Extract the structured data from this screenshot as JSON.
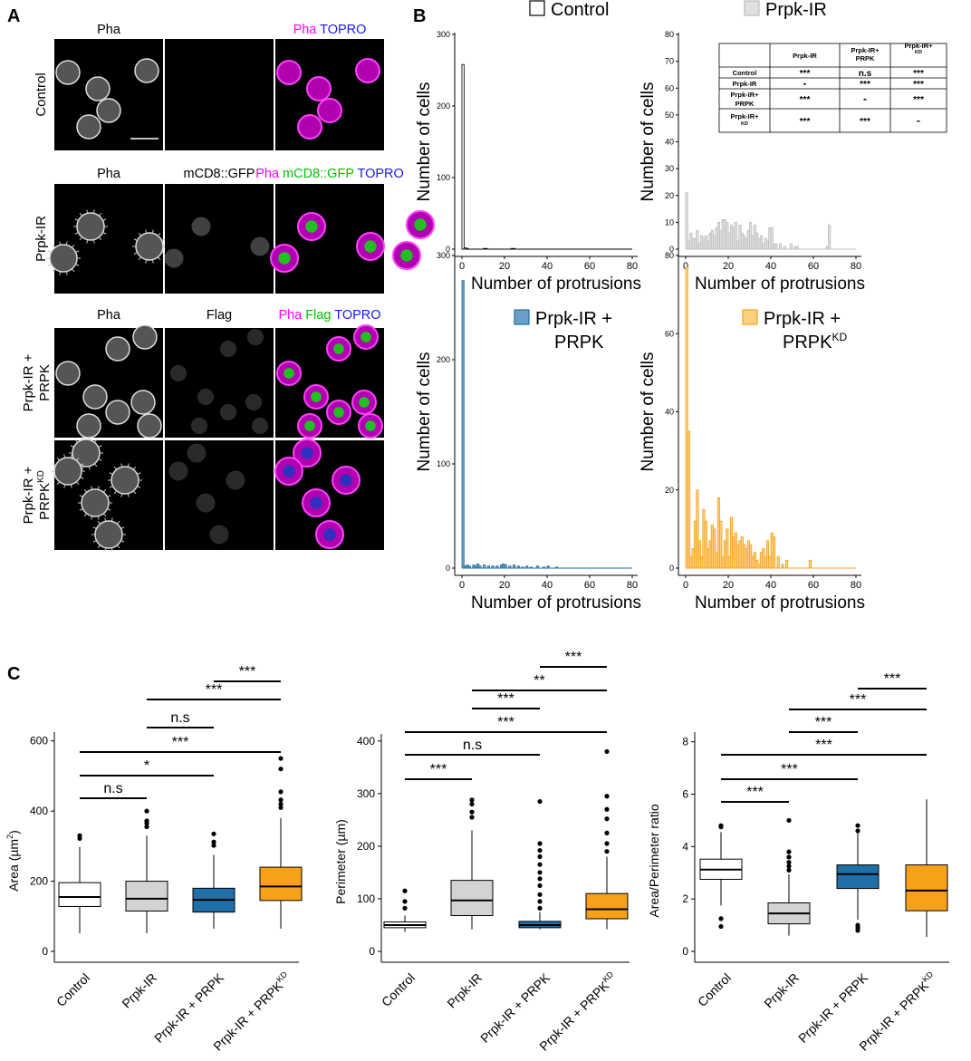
{
  "panels": {
    "a": "A",
    "b": "B",
    "c": "C"
  },
  "colors": {
    "control": "#ffffff",
    "prpk_ir": "#d3d3d3",
    "prpk_ir_prpk": "#1f6fa8",
    "prpk_ir_prpk_kd": "#f7a11a",
    "magenta": "#ff00ff",
    "green": "#00e000",
    "blue": "#1a1aff"
  },
  "panel_a": {
    "rows": [
      {
        "label": "Control",
        "headers": [
          [
            {
              "t": "Pha",
              "c": "#000"
            }
          ],
          [],
          [
            {
              "t": "Pha",
              "c": "#ff00ff"
            },
            {
              "t": " TOPRO",
              "c": "#1a1aff"
            }
          ]
        ]
      },
      {
        "label": "Prpk-IR",
        "headers": [
          [
            {
              "t": "Pha",
              "c": "#000"
            }
          ],
          [
            {
              "t": "mCD8::GFP",
              "c": "#000"
            }
          ],
          [
            {
              "t": "Pha",
              "c": "#ff00ff"
            },
            {
              "t": " mCD8::GFP",
              "c": "#00c000"
            },
            {
              "t": " TOPRO",
              "c": "#1a1aff"
            }
          ]
        ]
      },
      {
        "label": "Prpk-IR + PRPK",
        "headers": [
          [
            {
              "t": "Pha",
              "c": "#000"
            }
          ],
          [
            {
              "t": "Flag",
              "c": "#000"
            }
          ],
          [
            {
              "t": "Pha",
              "c": "#ff00ff"
            },
            {
              "t": " Flag",
              "c": "#00c000"
            },
            {
              "t": " TOPRO",
              "c": "#1a1aff"
            }
          ]
        ]
      },
      {
        "label": "Prpk-IR + PRPK",
        "label_sup": "KD",
        "headers": [
          [],
          [],
          []
        ]
      }
    ],
    "row_label_lines": [
      [
        "Control"
      ],
      [
        "Prpk-IR"
      ],
      [
        "Prpk-IR +",
        "PRPK"
      ],
      [
        "Prpk-IR +",
        "PRPK"
      ]
    ]
  },
  "panel_b_table": {
    "col_headers": [
      [
        "Prpk-IR"
      ],
      [
        "Prpk-IR+",
        "PRPK"
      ],
      [
        "Prpk-IR+",
        "PRPK",
        "KD"
      ]
    ],
    "row_headers": [
      [
        "Control"
      ],
      [
        "Prpk-IR"
      ],
      [
        "Prpk-IR+",
        "PRPK"
      ],
      [
        "Prpk-IR+",
        "PRPK",
        "KD"
      ]
    ],
    "cells": [
      [
        "***",
        "n.s",
        "***"
      ],
      [
        "-",
        "***",
        "***"
      ],
      [
        "***",
        "-",
        "***"
      ],
      [
        "***",
        "***",
        "-"
      ]
    ]
  },
  "chart_data": [
    {
      "type": "bar",
      "name": "Control",
      "legend_label": "Control",
      "xlabel": "Number of protrusions",
      "ylabel": "Number of cells",
      "xlim": [
        0,
        80
      ],
      "ylim": [
        0,
        300
      ],
      "xticks": [
        0,
        20,
        40,
        60,
        80
      ],
      "yticks": [
        0,
        100,
        200,
        300
      ],
      "color": "#ffffff",
      "stroke": "#000000",
      "bins": [
        [
          0,
          258
        ],
        [
          1,
          2
        ],
        [
          2,
          1
        ],
        [
          10,
          1
        ],
        [
          11,
          1
        ],
        [
          23,
          1
        ],
        [
          24,
          1
        ]
      ]
    },
    {
      "type": "bar",
      "name": "Prpk-IR",
      "legend_label": "Prpk-IR",
      "xlabel": "Number of protrusions",
      "ylabel": "Number of cells",
      "xlim": [
        0,
        80
      ],
      "ylim": [
        0,
        80
      ],
      "xticks": [
        0,
        20,
        40,
        60,
        80
      ],
      "yticks": [
        0,
        10,
        20,
        30,
        40,
        50,
        60,
        70,
        80
      ],
      "color": "#e0e0e0",
      "stroke": "#bdbdbd",
      "bins": [
        [
          0,
          21
        ],
        [
          1,
          3
        ],
        [
          2,
          6
        ],
        [
          3,
          4
        ],
        [
          4,
          4
        ],
        [
          5,
          7
        ],
        [
          6,
          2
        ],
        [
          7,
          5
        ],
        [
          8,
          4
        ],
        [
          9,
          5
        ],
        [
          10,
          3
        ],
        [
          11,
          6
        ],
        [
          12,
          7
        ],
        [
          13,
          5
        ],
        [
          14,
          8
        ],
        [
          15,
          10
        ],
        [
          16,
          7
        ],
        [
          17,
          11
        ],
        [
          18,
          11
        ],
        [
          19,
          10
        ],
        [
          20,
          6
        ],
        [
          21,
          9
        ],
        [
          22,
          8
        ],
        [
          23,
          10
        ],
        [
          24,
          3
        ],
        [
          25,
          9
        ],
        [
          26,
          6
        ],
        [
          27,
          5
        ],
        [
          28,
          4
        ],
        [
          29,
          7
        ],
        [
          30,
          10
        ],
        [
          31,
          5
        ],
        [
          32,
          9
        ],
        [
          33,
          6
        ],
        [
          34,
          4
        ],
        [
          35,
          5
        ],
        [
          36,
          2
        ],
        [
          37,
          4
        ],
        [
          38,
          3
        ],
        [
          39,
          8
        ],
        [
          40,
          8
        ],
        [
          41,
          2
        ],
        [
          42,
          2
        ],
        [
          44,
          2
        ],
        [
          46,
          1
        ],
        [
          49,
          2
        ],
        [
          51,
          1
        ],
        [
          52,
          1
        ],
        [
          66,
          1
        ],
        [
          67,
          9
        ]
      ]
    },
    {
      "type": "bar",
      "name": "Prpk-IR + PRPK",
      "legend_label": "Prpk-IR +",
      "legend_label_2": "PRPK",
      "xlabel": "Number of protrusions",
      "ylabel": "Number of cells",
      "xlim": [
        0,
        80
      ],
      "ylim": [
        0,
        300
      ],
      "xticks": [
        0,
        20,
        40,
        60,
        80
      ],
      "yticks": [
        0,
        100,
        200,
        300
      ],
      "color": "#6a9fc8",
      "stroke": "#1f6fa8",
      "bins": [
        [
          0,
          276
        ],
        [
          1,
          2
        ],
        [
          2,
          3
        ],
        [
          3,
          2
        ],
        [
          5,
          3
        ],
        [
          6,
          2
        ],
        [
          7,
          4
        ],
        [
          8,
          2
        ],
        [
          10,
          3
        ],
        [
          12,
          2
        ],
        [
          14,
          2
        ],
        [
          16,
          2
        ],
        [
          18,
          3
        ],
        [
          19,
          4
        ],
        [
          20,
          3
        ],
        [
          22,
          2
        ],
        [
          24,
          3
        ],
        [
          26,
          2
        ],
        [
          28,
          1
        ],
        [
          30,
          2
        ],
        [
          32,
          1
        ],
        [
          35,
          2
        ],
        [
          38,
          1
        ],
        [
          40,
          2
        ],
        [
          44,
          1
        ]
      ]
    },
    {
      "type": "bar",
      "name": "Prpk-IR + PRPK KD",
      "legend_label": "Prpk-IR +",
      "legend_label_2": "PRPK",
      "legend_sup": "KD",
      "xlabel": "Number of protrusions",
      "ylabel": "Number of cells",
      "xlim": [
        0,
        80
      ],
      "ylim": [
        0,
        80
      ],
      "xticks": [
        0,
        20,
        40,
        60,
        80
      ],
      "yticks": [
        0,
        20,
        40,
        60,
        80
      ],
      "color": "#fbd07e",
      "stroke": "#f7a11a",
      "bins": [
        [
          0,
          77
        ],
        [
          1,
          35
        ],
        [
          2,
          3
        ],
        [
          3,
          5
        ],
        [
          4,
          12
        ],
        [
          5,
          20
        ],
        [
          6,
          7
        ],
        [
          7,
          3
        ],
        [
          8,
          15
        ],
        [
          9,
          12
        ],
        [
          10,
          5
        ],
        [
          11,
          7
        ],
        [
          12,
          11
        ],
        [
          13,
          10
        ],
        [
          14,
          4
        ],
        [
          15,
          18
        ],
        [
          16,
          12
        ],
        [
          17,
          3
        ],
        [
          18,
          7
        ],
        [
          19,
          10
        ],
        [
          20,
          3
        ],
        [
          21,
          13
        ],
        [
          22,
          8
        ],
        [
          23,
          9
        ],
        [
          24,
          6
        ],
        [
          25,
          7
        ],
        [
          26,
          8
        ],
        [
          27,
          6
        ],
        [
          28,
          5
        ],
        [
          29,
          7
        ],
        [
          30,
          6
        ],
        [
          31,
          3
        ],
        [
          32,
          4
        ],
        [
          33,
          2
        ],
        [
          34,
          1
        ],
        [
          35,
          4
        ],
        [
          36,
          5
        ],
        [
          37,
          3
        ],
        [
          38,
          7
        ],
        [
          39,
          3
        ],
        [
          40,
          9
        ],
        [
          41,
          8
        ],
        [
          43,
          3
        ],
        [
          45,
          1
        ],
        [
          47,
          2
        ],
        [
          58,
          2
        ]
      ]
    },
    {
      "type": "box",
      "name": "Area",
      "ylabel": "Area (µm²)",
      "ylabel_main": "Area (µm",
      "ylabel_sup": "2",
      "ylabel_end": ")",
      "ylim": [
        0,
        620
      ],
      "yticks": [
        0,
        200,
        400,
        600
      ],
      "categories": [
        "Control",
        "Prpk-IR",
        "Prpk-IR + PRPK",
        "Prpk-IR + PRPKKD"
      ],
      "boxes": [
        {
          "min": 52,
          "q1": 128,
          "median": 155,
          "q3": 196,
          "max": 298,
          "outliers": [
            322,
            330
          ]
        },
        {
          "min": 52,
          "q1": 115,
          "median": 150,
          "q3": 200,
          "max": 330,
          "outliers": [
            355,
            365,
            372,
            400
          ]
        },
        {
          "min": 65,
          "q1": 112,
          "median": 147,
          "q3": 180,
          "max": 275,
          "outliers": [
            302,
            312,
            335
          ]
        },
        {
          "min": 65,
          "q1": 145,
          "median": 185,
          "q3": 240,
          "max": 380,
          "outliers": [
            410,
            420,
            432,
            455,
            520,
            550
          ]
        }
      ],
      "significance": [
        {
          "pair": [
            0,
            1
          ],
          "label": "n.s",
          "y": 445
        },
        {
          "pair": [
            0,
            2
          ],
          "label": "*",
          "y": 495
        },
        {
          "pair": [
            0,
            3
          ],
          "label": "***",
          "y": 545
        },
        {
          "pair": [
            1,
            2
          ],
          "label": "n.s",
          "y": 618
        },
        {
          "pair": [
            1,
            3
          ],
          "label": "***",
          "y": 685
        },
        {
          "pair": [
            2,
            3
          ],
          "label": "***",
          "y": 752
        }
      ]
    },
    {
      "type": "box",
      "name": "Perimeter",
      "ylabel": "Perimeter (µm)",
      "ylim": [
        0,
        410
      ],
      "yticks": [
        0,
        100,
        200,
        300,
        400
      ],
      "categories": [
        "Control",
        "Prpk-IR",
        "Prpk-IR + PRPK",
        "Prpk-IR + PRPKKD"
      ],
      "boxes": [
        {
          "min": 37,
          "q1": 45,
          "median": 50,
          "q3": 56,
          "max": 68,
          "outliers": [
            82,
            95,
            115
          ]
        },
        {
          "min": 42,
          "q1": 68,
          "median": 97,
          "q3": 135,
          "max": 230,
          "outliers": [
            255,
            265,
            280,
            288
          ]
        },
        {
          "min": 42,
          "q1": 45,
          "median": 50,
          "q3": 57,
          "max": 75,
          "outliers": [
            82,
            95,
            108,
            125,
            138,
            150,
            165,
            180,
            192,
            205,
            285
          ]
        },
        {
          "min": 42,
          "q1": 62,
          "median": 80,
          "q3": 110,
          "max": 180,
          "outliers": [
            190,
            205,
            225,
            252,
            270,
            295,
            380
          ]
        }
      ],
      "significance": [
        {
          "pair": [
            0,
            1
          ],
          "label": "***",
          "y": 305
        },
        {
          "pair": [
            0,
            2
          ],
          "label": "n.s",
          "y": 360
        },
        {
          "pair": [
            0,
            3
          ],
          "label": "***",
          "y": 425
        },
        {
          "pair": [
            1,
            2
          ],
          "label": "***",
          "y": 485
        },
        {
          "pair": [
            1,
            3
          ],
          "label": "**",
          "y": 550
        },
        {
          "pair": [
            2,
            3
          ],
          "label": "***",
          "y": 615
        }
      ]
    },
    {
      "type": "box",
      "name": "Area/Perimeter ratio",
      "ylabel": "Area/Perimeter ratio",
      "ylim": [
        0,
        8.3
      ],
      "yticks": [
        0,
        2,
        4,
        6,
        8
      ],
      "categories": [
        "Control",
        "Prpk-IR",
        "Prpk-IR + PRPK",
        "Prpk-IR + PRPKKD"
      ],
      "boxes": [
        {
          "min": 1.75,
          "q1": 2.75,
          "median": 3.12,
          "q3": 3.52,
          "max": 4.55,
          "outliers": [
            0.95,
            1.25,
            4.75,
            4.8
          ]
        },
        {
          "min": 0.6,
          "q1": 1.05,
          "median": 1.45,
          "q3": 1.85,
          "max": 2.95,
          "outliers": [
            3.1,
            3.25,
            3.4,
            3.6,
            3.8,
            5.0
          ]
        },
        {
          "min": 1.2,
          "q1": 2.4,
          "median": 2.95,
          "q3": 3.3,
          "max": 4.5,
          "outliers": [
            0.8,
            0.9,
            1.0,
            4.6,
            4.8
          ]
        },
        {
          "min": 0.55,
          "q1": 1.55,
          "median": 2.32,
          "q3": 3.3,
          "max": 5.8,
          "outliers": []
        }
      ],
      "significance": [
        {
          "pair": [
            0,
            1
          ],
          "label": "***",
          "y": 5.9
        },
        {
          "pair": [
            0,
            2
          ],
          "label": "***",
          "y": 6.8
        },
        {
          "pair": [
            0,
            3
          ],
          "label": "***",
          "y": 7.8
        },
        {
          "pair": [
            1,
            2
          ],
          "label": "***",
          "y": 8.8
        },
        {
          "pair": [
            1,
            3
          ],
          "label": "***",
          "y": 9.8
        },
        {
          "pair": [
            2,
            3
          ],
          "label": "***",
          "y": 10.8
        }
      ]
    }
  ],
  "x_category_labels": [
    {
      "text": "Control"
    },
    {
      "text": "Prpk-IR"
    },
    {
      "text": "Prpk-IR + PRPK"
    },
    {
      "text": "Prpk-IR + PRPK",
      "sup": "KD"
    }
  ]
}
